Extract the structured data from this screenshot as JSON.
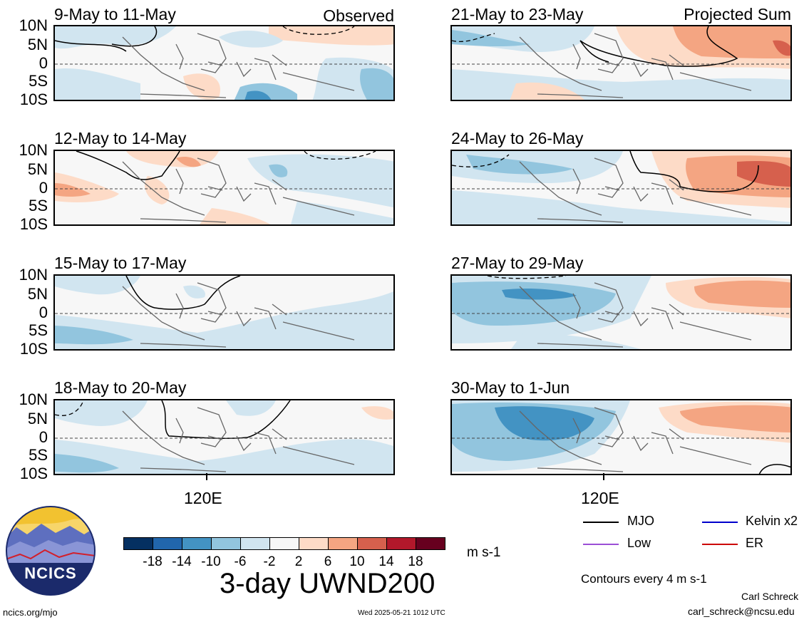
{
  "panels": [
    {
      "title": "9-May to 11-May",
      "tag": "Observed"
    },
    {
      "title": "12-May to 14-May",
      "tag": ""
    },
    {
      "title": "15-May to 17-May",
      "tag": ""
    },
    {
      "title": "18-May to 20-May",
      "tag": ""
    },
    {
      "title": "21-May to 23-May",
      "tag": "Projected Sum"
    },
    {
      "title": "24-May to 26-May",
      "tag": ""
    },
    {
      "title": "27-May to 29-May",
      "tag": ""
    },
    {
      "title": "30-May to 1-Jun",
      "tag": ""
    }
  ],
  "lat_labels": [
    "10N",
    "5N",
    "0",
    "5S",
    "10S"
  ],
  "lon_label": "120E",
  "colorbar": {
    "colors": [
      "#053061",
      "#2166ac",
      "#4393c3",
      "#92c5de",
      "#d1e5f0",
      "#f7f7f7",
      "#fddbc7",
      "#f4a582",
      "#d6604d",
      "#b2182b",
      "#67001f"
    ],
    "labels": [
      "-18",
      "-14",
      "-10",
      "-6",
      "-2",
      "2",
      "6",
      "10",
      "14",
      "18"
    ],
    "units": "m s-1",
    "title": "3-day UWND200"
  },
  "legend": {
    "items": [
      {
        "label": "MJO",
        "color": "#000000"
      },
      {
        "label": "Kelvin x2",
        "color": "#0000cc"
      },
      {
        "label": "Low",
        "color": "#9b4fd6"
      },
      {
        "label": "ER",
        "color": "#cc0000"
      }
    ],
    "contours_note": "Contours every 4 m s-1"
  },
  "logo": {
    "text": "NCICS"
  },
  "footer": {
    "left": "ncics.org/mjo",
    "center": "Wed 2025-05-21 1012 UTC",
    "author": "Carl Schreck",
    "email": "carl_schreck@ncsu.edu"
  }
}
